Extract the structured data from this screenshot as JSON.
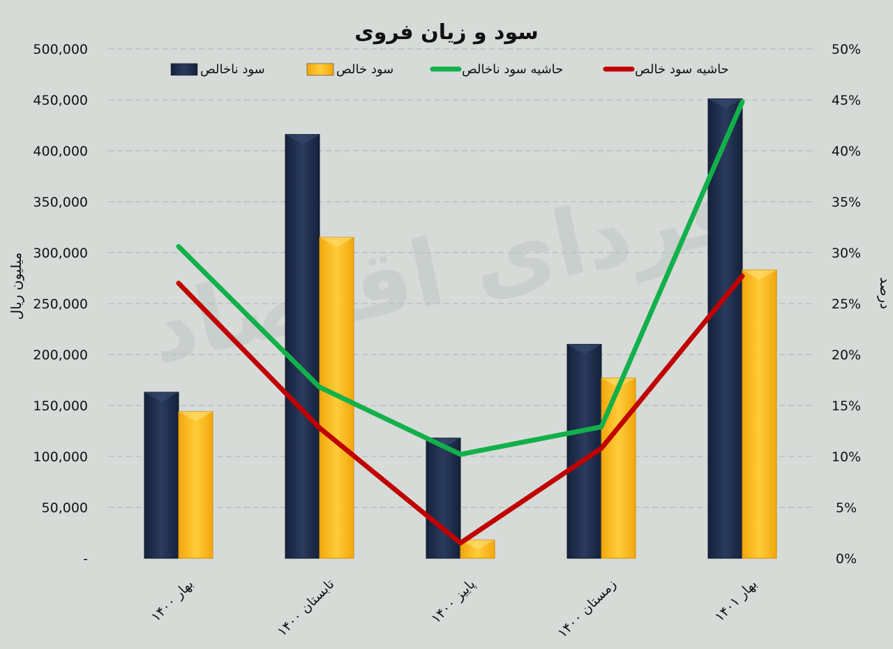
{
  "chart_data": {
    "type": "bar",
    "title": "سود و زیان فروی",
    "ylabel": "میلیون ریال",
    "y2label": "درصد",
    "ylim": [
      0,
      500000
    ],
    "y2lim": [
      0,
      50
    ],
    "yticks": [
      "-",
      "50,000",
      "100,000",
      "150,000",
      "200,000",
      "250,000",
      "300,000",
      "350,000",
      "400,000",
      "450,000",
      "500,000"
    ],
    "y2ticks": [
      "0%",
      "5%",
      "10%",
      "15%",
      "20%",
      "25%",
      "30%",
      "35%",
      "40%",
      "45%",
      "50%"
    ],
    "categories": [
      "بهار ۱۴۰۰",
      "تابستان ۱۴۰۰",
      "پاییز ۱۴۰۰",
      "زمستان ۱۴۰۰",
      "بهار ۱۴۰۱"
    ],
    "series": [
      {
        "name": "سود ناخالص",
        "kind": "bar",
        "axis": "left",
        "color": "#1b2a4a",
        "values": [
          163000,
          416000,
          118000,
          210000,
          451000
        ]
      },
      {
        "name": "سود خالص",
        "kind": "bar",
        "axis": "left",
        "color": "#f5b41a",
        "values": [
          144000,
          315000,
          18000,
          177000,
          283000
        ]
      },
      {
        "name": "حاشیه سود ناخالص",
        "kind": "line",
        "axis": "right",
        "color": "#12b04a",
        "values": [
          30.6,
          16.8,
          10.2,
          12.9,
          44.8
        ]
      },
      {
        "name": "حاشیه سود خالص",
        "kind": "line",
        "axis": "right",
        "color": "#c00000",
        "values": [
          27.0,
          12.8,
          1.5,
          10.8,
          27.7
        ]
      }
    ],
    "legend": "top",
    "grid": true,
    "watermark": "فردای اقتصاد"
  }
}
